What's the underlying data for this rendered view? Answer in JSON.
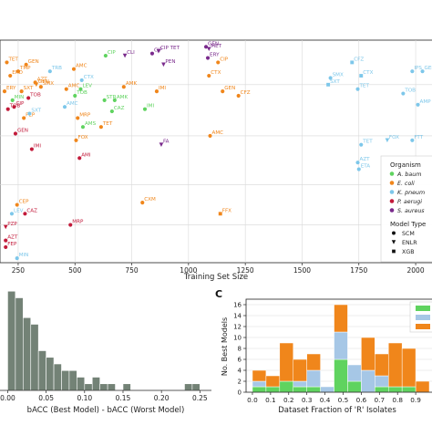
{
  "chart_data": [
    {
      "type": "scatter",
      "xlabel": "Training Set Size",
      "ylabel": "",
      "x_ticks": [
        250,
        500,
        750,
        1000,
        1250,
        1500,
        1750,
        2000
      ],
      "xlim": [
        170,
        2080
      ],
      "ylim": [
        0,
        100
      ],
      "grid": true,
      "legend": {
        "position": "right",
        "organism_title": "Organism",
        "organisms": [
          {
            "name": "A. baumannii",
            "label": "A. baum",
            "color": "#5fd35f"
          },
          {
            "name": "E. coli",
            "label": "E. coli",
            "color": "#f0861b"
          },
          {
            "name": "K. pneumoniae",
            "label": "K. pneum",
            "color": "#7dc7ea"
          },
          {
            "name": "P. aeruginosa",
            "label": "P. aerugi",
            "color": "#c21a3a"
          },
          {
            "name": "S. aureus",
            "label": "S. aureus",
            "color": "#7a2a8c"
          }
        ],
        "model_title": "Model Type",
        "models": [
          {
            "name": "SCM",
            "marker": "circle"
          },
          {
            "name": "ENLR",
            "marker": "triangle"
          },
          {
            "name": "XGB",
            "marker": "square"
          }
        ]
      },
      "points": [
        {
          "label": "CIP",
          "x": 840,
          "y": 94,
          "org": "S. aureus",
          "m": "circle"
        },
        {
          "label": "CIP TET",
          "x": 868,
          "y": 95,
          "org": "S. aureus",
          "m": "triangle"
        },
        {
          "label": "GEN",
          "x": 1077,
          "y": 97,
          "org": "S. aureus",
          "m": "circle"
        },
        {
          "label": "MET",
          "x": 1090,
          "y": 96,
          "org": "S. aureus",
          "m": "triangle"
        },
        {
          "label": "ERY",
          "x": 1085,
          "y": 92,
          "org": "S. aureus",
          "m": "circle"
        },
        {
          "label": "CLI",
          "x": 720,
          "y": 93,
          "org": "S. aureus",
          "m": "triangle"
        },
        {
          "label": "PEN",
          "x": 890,
          "y": 89,
          "org": "S. aureus",
          "m": "triangle"
        },
        {
          "label": "CIP",
          "x": 635,
          "y": 93,
          "org": "A. baumannii",
          "m": "circle"
        },
        {
          "label": "TET",
          "x": 200,
          "y": 90,
          "org": "E. coli",
          "m": "circle"
        },
        {
          "label": "GEN",
          "x": 285,
          "y": 89,
          "org": "E. coli",
          "m": "circle"
        },
        {
          "label": "CIP",
          "x": 1130,
          "y": 90,
          "org": "E. coli",
          "m": "circle"
        },
        {
          "label": "CTX",
          "x": 1090,
          "y": 84,
          "org": "E. coli",
          "m": "circle"
        },
        {
          "label": "CFZ",
          "x": 1220,
          "y": 75,
          "org": "E. coli",
          "m": "circle"
        },
        {
          "label": "GEN",
          "x": 1150,
          "y": 77,
          "org": "E. coli",
          "m": "circle"
        },
        {
          "label": "CXM",
          "x": 797,
          "y": 27,
          "org": "E. coli",
          "m": "circle"
        },
        {
          "label": "FFX",
          "x": 1140,
          "y": 22,
          "org": "E. coli",
          "m": "square"
        },
        {
          "label": "CEP",
          "x": 245,
          "y": 26,
          "org": "E. coli",
          "m": "circle"
        },
        {
          "label": "AMC",
          "x": 1095,
          "y": 57,
          "org": "E. coli",
          "m": "circle"
        },
        {
          "label": "TMP",
          "x": 250,
          "y": 86,
          "org": "E. coli",
          "m": "circle"
        },
        {
          "label": "ERD",
          "x": 215,
          "y": 84,
          "org": "E. coli",
          "m": "circle"
        },
        {
          "label": "GEN",
          "x": 330,
          "y": 80,
          "org": "E. coli",
          "m": "triangle"
        },
        {
          "label": "ERY",
          "x": 190,
          "y": 77,
          "org": "E. coli",
          "m": "circle"
        },
        {
          "label": "SXT",
          "x": 265,
          "y": 77,
          "org": "E. coli",
          "m": "circle"
        },
        {
          "label": "AMC",
          "x": 495,
          "y": 87,
          "org": "E. coli",
          "m": "circle"
        },
        {
          "label": "AMK",
          "x": 715,
          "y": 79,
          "org": "E. coli",
          "m": "circle"
        },
        {
          "label": "IMI",
          "x": 860,
          "y": 77,
          "org": "E. coli",
          "m": "circle"
        },
        {
          "label": "FEP",
          "x": 275,
          "y": 65,
          "org": "E. coli",
          "m": "circle"
        },
        {
          "label": "MRP",
          "x": 512,
          "y": 65,
          "org": "E. coli",
          "m": "circle"
        },
        {
          "label": "TET",
          "x": 615,
          "y": 61,
          "org": "E. coli",
          "m": "circle"
        },
        {
          "label": "FOX",
          "x": 505,
          "y": 55,
          "org": "E. coli",
          "m": "circle"
        },
        {
          "label": "AZT",
          "x": 325,
          "y": 81,
          "org": "E. coli",
          "m": "circle"
        },
        {
          "label": "SMX",
          "x": 350,
          "y": 79,
          "org": "E. coli",
          "m": "circle"
        },
        {
          "label": "AMC",
          "x": 462,
          "y": 78,
          "org": "E. coli",
          "m": "circle"
        },
        {
          "label": "STR",
          "x": 630,
          "y": 73,
          "org": "A. baumannii",
          "m": "circle"
        },
        {
          "label": "AMK",
          "x": 675,
          "y": 73,
          "org": "A. baumannii",
          "m": "circle"
        },
        {
          "label": "TOB",
          "x": 500,
          "y": 75,
          "org": "A. baumannii",
          "m": "circle"
        },
        {
          "label": "LEV",
          "x": 525,
          "y": 78,
          "org": "A. baumannii",
          "m": "circle"
        },
        {
          "label": "MIN",
          "x": 225,
          "y": 73,
          "org": "A. baumannii",
          "m": "circle"
        },
        {
          "label": "CAZ",
          "x": 663,
          "y": 68,
          "org": "A. baumannii",
          "m": "circle"
        },
        {
          "label": "IMI",
          "x": 808,
          "y": 69,
          "org": "A. baumannii",
          "m": "circle"
        },
        {
          "label": "AMS",
          "x": 535,
          "y": 61,
          "org": "A. baumannii",
          "m": "circle"
        },
        {
          "label": "CTX",
          "x": 530,
          "y": 82,
          "org": "K. pneumoniae",
          "m": "circle"
        },
        {
          "label": "TRB",
          "x": 390,
          "y": 86,
          "org": "K. pneumoniae",
          "m": "circle"
        },
        {
          "label": "AMC",
          "x": 455,
          "y": 70,
          "org": "K. pneumoniae",
          "m": "circle"
        },
        {
          "label": "SXT",
          "x": 300,
          "y": 67,
          "org": "K. pneumoniae",
          "m": "circle"
        },
        {
          "label": "SMX",
          "x": 1625,
          "y": 83,
          "org": "K. pneumoniae",
          "m": "circle"
        },
        {
          "label": "SXT",
          "x": 1615,
          "y": 80,
          "org": "K. pneumoniae",
          "m": "square"
        },
        {
          "label": "CFZ",
          "x": 1720,
          "y": 90,
          "org": "K. pneumoniae",
          "m": "square"
        },
        {
          "label": "CTX",
          "x": 1760,
          "y": 84,
          "org": "K. pneumoniae",
          "m": "square"
        },
        {
          "label": "TET",
          "x": 1745,
          "y": 78,
          "org": "K. pneumoniae",
          "m": "circle"
        },
        {
          "label": "IPS",
          "x": 1985,
          "y": 86,
          "org": "K. pneumoniae",
          "m": "circle"
        },
        {
          "label": "GEN",
          "x": 2030,
          "y": 86,
          "org": "K. pneumoniae",
          "m": "circle"
        },
        {
          "label": "TOB",
          "x": 1945,
          "y": 76,
          "org": "K. pneumoniae",
          "m": "circle"
        },
        {
          "label": "AMP",
          "x": 2010,
          "y": 71,
          "org": "K. pneumoniae",
          "m": "circle"
        },
        {
          "label": "TET",
          "x": 1760,
          "y": 53,
          "org": "K. pneumoniae",
          "m": "circle"
        },
        {
          "label": "FOX",
          "x": 1875,
          "y": 55,
          "org": "K. pneumoniae",
          "m": "triangle"
        },
        {
          "label": "FTT",
          "x": 1985,
          "y": 55,
          "org": "K. pneumoniae",
          "m": "circle"
        },
        {
          "label": "AZT",
          "x": 1745,
          "y": 45,
          "org": "K. pneumoniae",
          "m": "circle"
        },
        {
          "label": "ETA",
          "x": 1750,
          "y": 42,
          "org": "K. pneumoniae",
          "m": "circle"
        },
        {
          "label": "LEV",
          "x": 222,
          "y": 22,
          "org": "K. pneumoniae",
          "m": "circle"
        },
        {
          "label": "MIN",
          "x": 245,
          "y": 2,
          "org": "K. pneumoniae",
          "m": "circle"
        },
        {
          "label": "TOB",
          "x": 205,
          "y": 69,
          "org": "P. aeruginosa",
          "m": "circle"
        },
        {
          "label": "CIP",
          "x": 232,
          "y": 70,
          "org": "P. aeruginosa",
          "m": "circle"
        },
        {
          "label": "GEN",
          "x": 238,
          "y": 58,
          "org": "P. aeruginosa",
          "m": "circle"
        },
        {
          "label": "IMI",
          "x": 310,
          "y": 51,
          "org": "P. aeruginosa",
          "m": "circle"
        },
        {
          "label": "AMI",
          "x": 520,
          "y": 47,
          "org": "P. aeruginosa",
          "m": "circle"
        },
        {
          "label": "CAZ",
          "x": 280,
          "y": 22,
          "org": "P. aeruginosa",
          "m": "circle"
        },
        {
          "label": "MRP",
          "x": 480,
          "y": 17,
          "org": "P. aeruginosa",
          "m": "circle"
        },
        {
          "label": "PZP",
          "x": 195,
          "y": 16,
          "org": "P. aeruginosa",
          "m": "triangle"
        },
        {
          "label": "AZT",
          "x": 195,
          "y": 10,
          "org": "P. aeruginosa",
          "m": "circle"
        },
        {
          "label": "FEP",
          "x": 195,
          "y": 7,
          "org": "P. aeruginosa",
          "m": "circle"
        },
        {
          "label": "TOB",
          "x": 295,
          "y": 74,
          "org": "P. aeruginosa",
          "m": "circle"
        },
        {
          "label": "FA",
          "x": 880,
          "y": 53,
          "org": "S. aureus",
          "m": "triangle"
        }
      ]
    },
    {
      "type": "bar",
      "xlabel": "bACC (Best Model) - bACC (Worst Model)",
      "ylabel": "",
      "x_ticks": [
        "0.00",
        "0.05",
        "0.10",
        "0.15",
        "0.20",
        "0.25"
      ],
      "xlim": [
        -0.01,
        0.265
      ],
      "ylim": [
        0,
        16
      ],
      "bin_width": 0.01,
      "bin_start": 0.0,
      "values": [
        15,
        14,
        11,
        10,
        6,
        5,
        4,
        3,
        3,
        2,
        1,
        2,
        1,
        1,
        0,
        1,
        0,
        0,
        0,
        0,
        0,
        0,
        0,
        1,
        1,
        0
      ],
      "color": "#738276"
    },
    {
      "type": "bar",
      "stacked": true,
      "panel_label": "C",
      "xlabel": "Dataset Fraction of 'R' Isolates",
      "ylabel": "No. Best Models",
      "x_ticks": [
        "0.0",
        "0.1",
        "0.2",
        "0.3",
        "0.4",
        "0.5",
        "0.6",
        "0.7",
        "0.8",
        "0.9"
      ],
      "y_ticks": [
        0,
        2,
        4,
        6,
        8,
        10,
        12,
        14,
        16
      ],
      "ylim": [
        0,
        17
      ],
      "bin_edges": [
        0.0,
        0.075,
        0.15,
        0.225,
        0.3,
        0.375,
        0.45,
        0.525,
        0.6,
        0.675,
        0.75,
        0.825,
        0.9,
        0.975
      ],
      "series": [
        {
          "color": "#5fd35f",
          "values": [
            1,
            1,
            2,
            1,
            1,
            0,
            6,
            2,
            0,
            1,
            1,
            1,
            0
          ]
        },
        {
          "color": "#a6c7e6",
          "values": [
            1,
            0,
            0,
            1,
            3,
            1,
            5,
            3,
            4,
            2,
            0,
            0,
            0
          ]
        },
        {
          "color": "#f0861b",
          "values": [
            2,
            2,
            7,
            4,
            3,
            0,
            5,
            0,
            6,
            4,
            8,
            7,
            2
          ]
        }
      ],
      "legend_position": "top-right"
    }
  ]
}
